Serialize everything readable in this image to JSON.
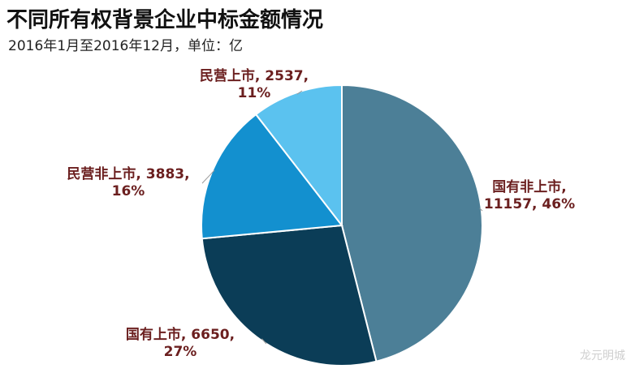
{
  "chart_data": {
    "type": "pie",
    "title": "不同所有权背景企业中标金额情况",
    "subtitle": "2016年1月至2016年12月，单位：亿",
    "slices": [
      {
        "name": "国有非上市",
        "value": 11157,
        "percent": "46%",
        "color": "#4c7f97",
        "line1": "国有非上市,",
        "line2": "11157, 46%"
      },
      {
        "name": "国有上市",
        "value": 6650,
        "percent": "27%",
        "color": "#0b3d57",
        "line1": "国有上市, 6650,",
        "line2": "27%"
      },
      {
        "name": "民营非上市",
        "value": 3883,
        "percent": "16%",
        "color": "#1390cf",
        "line1": "民营非上市, 3883,",
        "line2": "16%"
      },
      {
        "name": "民营上市",
        "value": 2537,
        "percent": "11%",
        "color": "#5bc2ef",
        "line1": "民营上市, 2537,",
        "line2": "11%"
      }
    ],
    "label_color": "#6b1f1f"
  },
  "watermark": "龙元明城"
}
